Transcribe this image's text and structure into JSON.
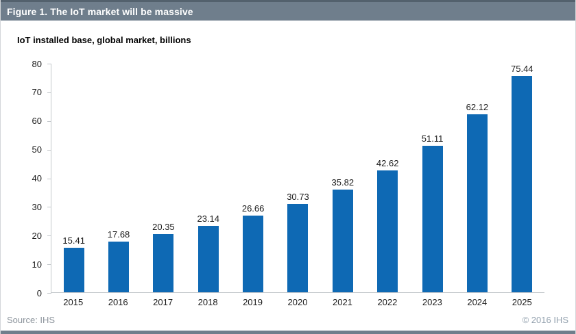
{
  "header": {
    "title": "Figure 1. The IoT market will be massive"
  },
  "chart_data": {
    "type": "bar",
    "title": "IoT installed base, global market, billions",
    "categories": [
      "2015",
      "2016",
      "2017",
      "2018",
      "2019",
      "2020",
      "2021",
      "2022",
      "2023",
      "2024",
      "2025"
    ],
    "values": [
      15.41,
      17.68,
      20.35,
      23.14,
      26.66,
      30.73,
      35.82,
      42.62,
      51.11,
      62.12,
      75.44
    ],
    "value_labels": [
      "15.41",
      "17.68",
      "20.35",
      "23.14",
      "26.66",
      "30.73",
      "35.82",
      "42.62",
      "51.11",
      "62.12",
      "75.44"
    ],
    "xlabel": "",
    "ylabel": "",
    "ylim": [
      0,
      80
    ],
    "yticks": [
      0,
      10,
      20,
      30,
      40,
      50,
      60,
      70,
      80
    ],
    "grid": false,
    "legend": false,
    "data_labels": true
  },
  "footer": {
    "source": "Source: IHS",
    "copyright": "© 2016 IHS"
  },
  "colors": {
    "header_bg": "#6f7e8c",
    "header_text": "#ffffff",
    "bar": "#0e69b4",
    "axis": "#c3c7cb",
    "source_text": "#8b939b",
    "copyright_text": "#93a1ae",
    "bottom_bar": "#6f7e8c"
  }
}
